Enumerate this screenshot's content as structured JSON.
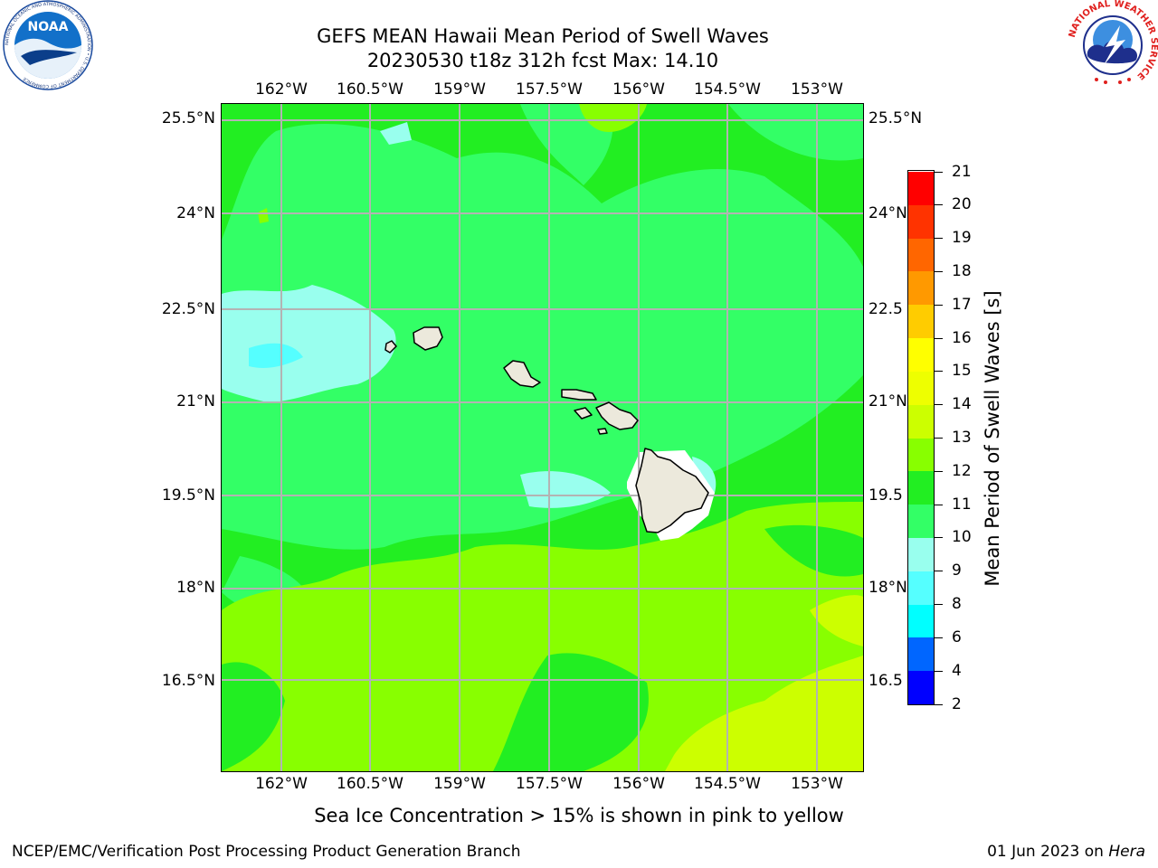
{
  "header": {
    "title_line1": "GEFS MEAN Hawaii Mean Period of Swell Waves",
    "title_line2": "20230530 t18z 312h fcst   Max: 14.10"
  },
  "logos": {
    "noaa_text": "NOAA",
    "noaa_ring_text": "NATIONAL OCEANIC AND ATMOSPHERIC ADMINISTRATION • U.S. DEPARTMENT OF COMMERCE",
    "nws_ring_text": "NATIONAL WEATHER SERVICE"
  },
  "map": {
    "lon_labels": [
      "162°W",
      "160.5°W",
      "159°W",
      "157.5°W",
      "156°W",
      "154.5°W",
      "153°W"
    ],
    "lat_labels_left": [
      "25.5°N",
      "24°N",
      "22.5°N",
      "21°N",
      "19.5°N",
      "18°N",
      "16.5°N"
    ],
    "lat_labels_right": [
      "25.5°N",
      "24°N",
      "22.5",
      "21°N",
      "19.5",
      "18°N",
      "16.5"
    ],
    "gridlines": "on",
    "land_color": "#ece9dc",
    "coastline_color": "#000000",
    "grid_color": "#b3b3b3"
  },
  "colorbar": {
    "title": "Mean Period of Swell Waves [s]",
    "ticks": [
      "2",
      "4",
      "6",
      "8",
      "9",
      "10",
      "11",
      "12",
      "13",
      "14",
      "15",
      "16",
      "17",
      "18",
      "19",
      "20",
      "21"
    ],
    "colors": [
      "#0000ff",
      "#0066ff",
      "#00ffff",
      "#55ffff",
      "#99ffee",
      "#33ff66",
      "#22ee22",
      "#88ff00",
      "#ccff00",
      "#eeff00",
      "#ffff00",
      "#ffcc00",
      "#ff9900",
      "#ff6600",
      "#ff3300",
      "#ff0000"
    ]
  },
  "footer": {
    "sea_ice_note": "Sea Ice Concentration > 15% is shown in pink to yellow",
    "credits": "NCEP/EMC/Verification Post Processing Product Generation Branch",
    "date_prefix": "01 Jun 2023 on ",
    "machine": "Hera"
  }
}
